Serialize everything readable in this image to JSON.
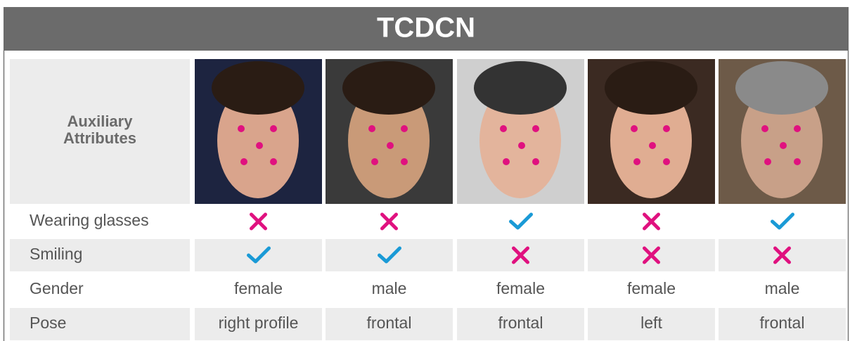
{
  "title": "TCDCN",
  "header": [
    "Auxiliary",
    "Attributes"
  ],
  "rows": [
    {
      "label": "Wearing glasses",
      "cells": [
        false,
        false,
        true,
        false,
        true
      ]
    },
    {
      "label": "Smiling",
      "cells": [
        true,
        true,
        false,
        false,
        false
      ]
    },
    {
      "label": "Gender",
      "cells": [
        "female",
        "male",
        "female",
        "female",
        "male"
      ]
    },
    {
      "label": "Pose",
      "cells": [
        "right profile",
        "frontal",
        "frontal",
        "left",
        "frontal"
      ]
    }
  ]
}
